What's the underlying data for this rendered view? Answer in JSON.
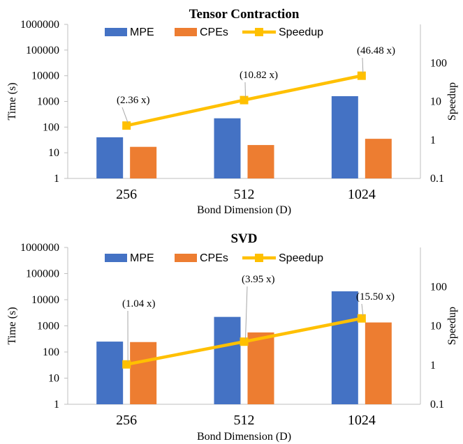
{
  "chart_data": [
    {
      "type": "bar",
      "title": "Tensor Contraction",
      "xlabel": "Bond Dimension (D)",
      "ylabel": "Time (s)",
      "y2label": "Speedup",
      "categories": [
        "256",
        "512",
        "1024"
      ],
      "yscale": "log",
      "ylim": [
        1,
        1000000
      ],
      "yticks": [
        "1",
        "10",
        "100",
        "1000",
        "10000",
        "100000",
        "1000000"
      ],
      "y2scale": "log",
      "y2lim": [
        0.1,
        1000
      ],
      "y2ticks": [
        "0.1",
        "1",
        "10",
        "100"
      ],
      "legend_position": "top",
      "series": [
        {
          "name": "MPE",
          "kind": "bar",
          "axis": "left",
          "color": "#4472C4",
          "values": [
            40,
            220,
            1600
          ]
        },
        {
          "name": "CPEs",
          "kind": "bar",
          "axis": "left",
          "color": "#ED7D31",
          "values": [
            17,
            20,
            35
          ]
        },
        {
          "name": "Speedup",
          "kind": "line",
          "axis": "right",
          "color": "#FFC000",
          "values": [
            2.36,
            10.82,
            46.48
          ]
        }
      ],
      "annotations": [
        "(2.36 x)",
        "(10.82 x)",
        "(46.48 x)"
      ]
    },
    {
      "type": "bar",
      "title": "SVD",
      "xlabel": "Bond Dimension (D)",
      "ylabel": "Time (s)",
      "y2label": "Speedup",
      "categories": [
        "256",
        "512",
        "1024"
      ],
      "yscale": "log",
      "ylim": [
        1,
        1000000
      ],
      "yticks": [
        "1",
        "10",
        "100",
        "1000",
        "10000",
        "100000",
        "1000000"
      ],
      "y2scale": "log",
      "y2lim": [
        0.1,
        1000
      ],
      "y2ticks": [
        "0.1",
        "1",
        "10",
        "100"
      ],
      "legend_position": "top",
      "series": [
        {
          "name": "MPE",
          "kind": "bar",
          "axis": "left",
          "color": "#4472C4",
          "values": [
            250,
            2200,
            21000
          ]
        },
        {
          "name": "CPEs",
          "kind": "bar",
          "axis": "left",
          "color": "#ED7D31",
          "values": [
            240,
            560,
            1350
          ]
        },
        {
          "name": "Speedup",
          "kind": "line",
          "axis": "right",
          "color": "#FFC000",
          "values": [
            1.04,
            3.95,
            15.5
          ]
        }
      ],
      "annotations": [
        "(1.04 x)",
        "(3.95 x)",
        "(15.50 x)"
      ]
    }
  ]
}
